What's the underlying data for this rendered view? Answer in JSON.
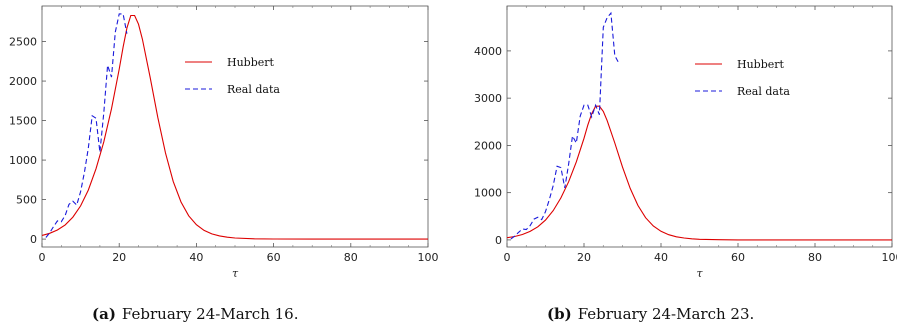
{
  "chart_data": [
    {
      "type": "line",
      "caption_tag": "(a)",
      "caption_text": "February 24-March 16.",
      "xlabel": "τ",
      "ylabel": "",
      "xlim": [
        0,
        100
      ],
      "ylim": [
        -100,
        2950
      ],
      "xticks": [
        0,
        20,
        40,
        60,
        80,
        100
      ],
      "yticks": [
        0,
        500,
        1000,
        1500,
        2000,
        2500
      ],
      "legend_position": "upper-right",
      "series": [
        {
          "name": "Hubbert",
          "style": "solid",
          "color": "#dd0000",
          "x": [
            0,
            2,
            4,
            6,
            8,
            10,
            12,
            14,
            16,
            18,
            20,
            21,
            22,
            23,
            24,
            25,
            26,
            28,
            30,
            32,
            34,
            36,
            38,
            40,
            42,
            44,
            46,
            48,
            50,
            55,
            60,
            70,
            80,
            90,
            100
          ],
          "y": [
            46,
            73,
            115,
            180,
            278,
            420,
            620,
            890,
            1230,
            1650,
            2150,
            2430,
            2670,
            2830,
            2830,
            2720,
            2530,
            2050,
            1540,
            1090,
            730,
            470,
            295,
            182,
            110,
            66,
            40,
            24,
            14,
            4,
            1,
            0,
            0,
            0,
            0
          ]
        },
        {
          "name": "Real data",
          "style": "dashed",
          "color": "#1a1adb",
          "x": [
            1,
            2,
            3,
            4,
            5,
            6,
            7,
            8,
            9,
            10,
            11,
            12,
            13,
            14,
            15,
            16,
            17,
            18,
            19,
            20,
            21,
            22
          ],
          "y": [
            20,
            80,
            160,
            230,
            220,
            300,
            440,
            480,
            430,
            600,
            850,
            1150,
            1560,
            1530,
            1100,
            1600,
            2200,
            2050,
            2620,
            2850,
            2850,
            2600
          ]
        }
      ]
    },
    {
      "type": "line",
      "caption_tag": "(b)",
      "caption_text": "February 24-March 23.",
      "xlabel": "τ",
      "ylabel": "",
      "xlim": [
        0,
        100
      ],
      "ylim": [
        -150,
        4950
      ],
      "xticks": [
        0,
        20,
        40,
        60,
        80,
        100
      ],
      "yticks": [
        0,
        1000,
        2000,
        3000,
        4000
      ],
      "legend_position": "upper-right",
      "series": [
        {
          "name": "Hubbert",
          "style": "solid",
          "color": "#dd0000",
          "x": [
            0,
            2,
            4,
            6,
            8,
            10,
            12,
            14,
            16,
            18,
            20,
            21,
            22,
            23,
            24,
            25,
            26,
            28,
            30,
            32,
            34,
            36,
            38,
            40,
            42,
            44,
            46,
            48,
            50,
            55,
            60,
            70,
            80,
            90,
            100
          ],
          "y": [
            46,
            73,
            115,
            180,
            278,
            420,
            620,
            890,
            1230,
            1650,
            2150,
            2430,
            2670,
            2830,
            2830,
            2720,
            2530,
            2050,
            1540,
            1090,
            730,
            470,
            295,
            182,
            110,
            66,
            40,
            24,
            14,
            4,
            1,
            0,
            0,
            0,
            0
          ]
        },
        {
          "name": "Real data",
          "style": "dashed",
          "color": "#1a1adb",
          "x": [
            1,
            2,
            3,
            4,
            5,
            6,
            7,
            8,
            9,
            10,
            11,
            12,
            13,
            14,
            15,
            16,
            17,
            18,
            19,
            20,
            21,
            22,
            23,
            24,
            25,
            26,
            27,
            28,
            29
          ],
          "y": [
            20,
            80,
            160,
            230,
            220,
            300,
            440,
            480,
            430,
            600,
            850,
            1150,
            1560,
            1530,
            1100,
            1600,
            2200,
            2050,
            2620,
            2850,
            2850,
            2600,
            2850,
            2650,
            4500,
            4700,
            4800,
            3900,
            3750
          ]
        }
      ]
    }
  ]
}
